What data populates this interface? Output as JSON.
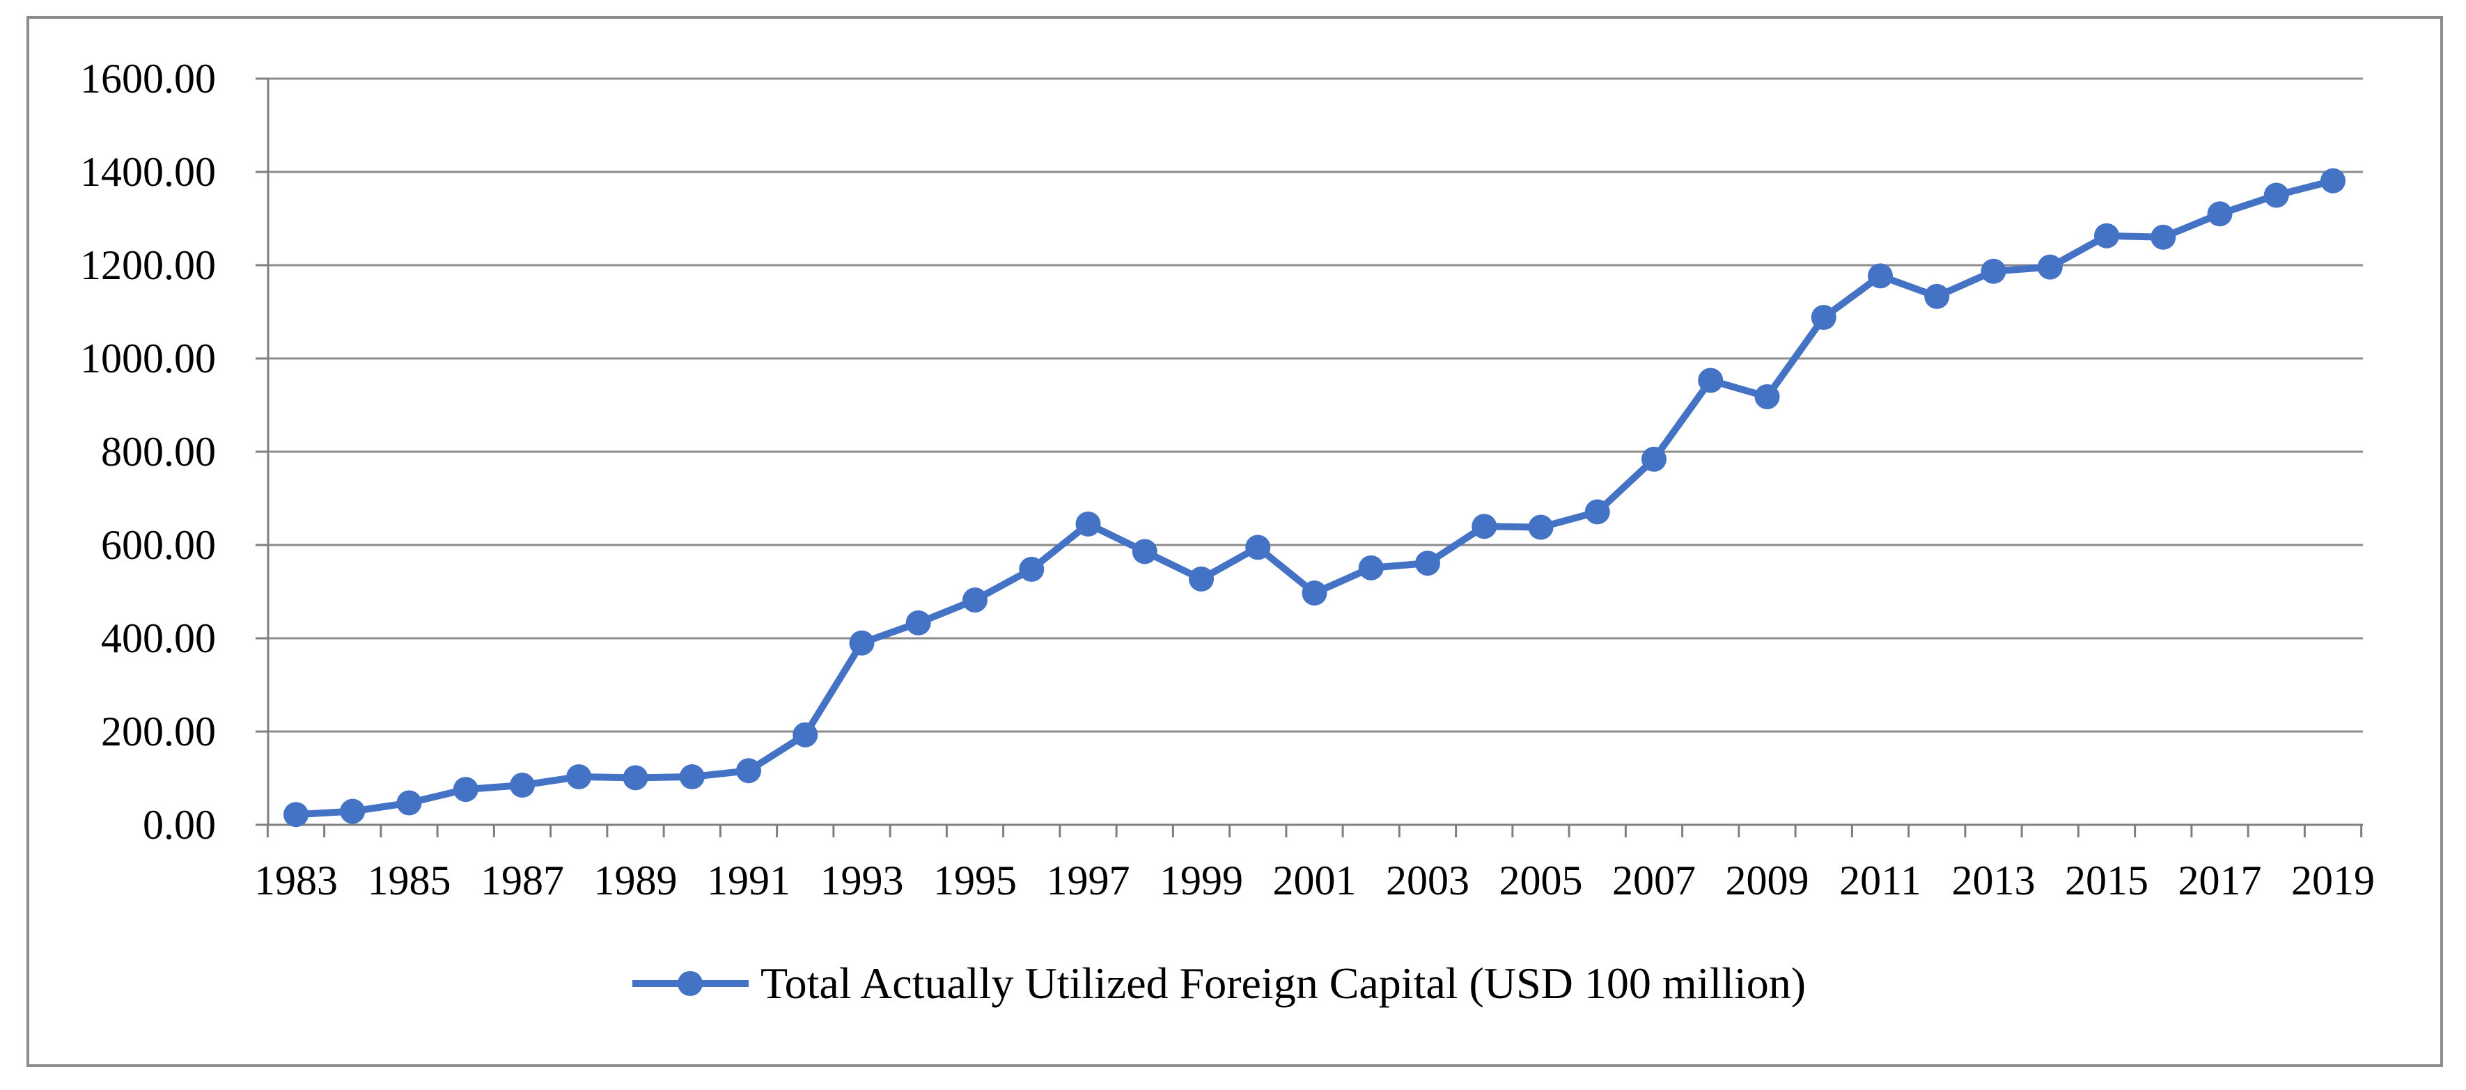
{
  "chart_data": {
    "type": "line",
    "title": "",
    "xlabel": "",
    "ylabel": "",
    "ylim": [
      0,
      1600
    ],
    "yticks": [
      "0.00",
      "200.00",
      "400.00",
      "600.00",
      "800.00",
      "1000.00",
      "1200.00",
      "1400.00",
      "1600.00"
    ],
    "xtick_labels": [
      "1983",
      "1985",
      "1987",
      "1989",
      "1991",
      "1993",
      "1995",
      "1997",
      "1999",
      "2001",
      "2003",
      "2005",
      "2007",
      "2009",
      "2011",
      "2013",
      "2015",
      "2017",
      "2019"
    ],
    "grid": "horizontal",
    "legend_position": "bottom-center",
    "series": [
      {
        "name": "Total Actually Utilized Foreign Capital (USD 100 million)",
        "color": "#4472C4",
        "marker": "circle",
        "x": [
          1983,
          1984,
          1985,
          1986,
          1987,
          1988,
          1989,
          1990,
          1991,
          1992,
          1993,
          1994,
          1995,
          1996,
          1997,
          1998,
          1999,
          2000,
          2001,
          2002,
          2003,
          2004,
          2005,
          2006,
          2007,
          2008,
          2009,
          2010,
          2011,
          2012,
          2013,
          2014,
          2015,
          2016,
          2017,
          2018,
          2019
        ],
        "values": [
          22,
          29,
          47,
          76,
          85,
          103,
          101,
          103,
          116,
          193,
          390,
          433,
          482,
          548,
          645,
          586,
          527,
          595,
          497,
          551,
          561,
          640,
          638,
          671,
          784,
          953,
          918,
          1088,
          1177,
          1133,
          1187,
          1196,
          1263,
          1260,
          1310,
          1350,
          1381
        ]
      }
    ]
  }
}
